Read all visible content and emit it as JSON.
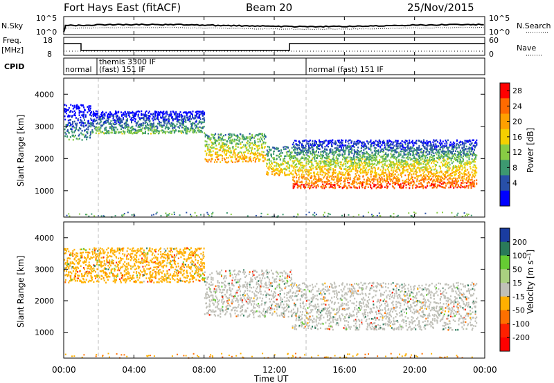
{
  "header": {
    "station": "Fort Hays East (fitACF)",
    "beam": "Beam 20",
    "date": "25/Nov/2015"
  },
  "panels": {
    "nsky": {
      "label": "N.Sky",
      "ticks": [
        "10^5",
        "10^0"
      ],
      "right_label": "N.Search",
      "right_ticks": [
        "10^5",
        "10^0"
      ]
    },
    "freq": {
      "label_line1": "Freq.",
      "label_line2": "[MHz]",
      "ticks": [
        "18",
        "8"
      ],
      "right_label": "Nave",
      "right_ticks": [
        "60",
        "0"
      ]
    },
    "cpid": {
      "label": "CPID",
      "segments": [
        {
          "name": "normal"
        },
        {
          "name": "themis 3300 IF\n(fast) 151 IF"
        },
        {
          "name": "normal (fast) 151 IF"
        }
      ]
    }
  },
  "axes": {
    "ylabel": "Slant Range [km]",
    "xlabel": "Time UT",
    "x_ticks": [
      "00:00",
      "04:00",
      "08:00",
      "12:00",
      "16:00",
      "20:00",
      "00:00"
    ],
    "y_ticks": [
      "1000",
      "2000",
      "3000",
      "4000"
    ]
  },
  "colorbars": {
    "power": {
      "label": "Power [dB]",
      "ticks": [
        "28",
        "24",
        "20",
        "16",
        "12",
        "8",
        "4"
      ],
      "colors": [
        "#ff0000",
        "#ff6a00",
        "#ffa000",
        "#f5d000",
        "#88cc44",
        "#3d9970",
        "#2850a8",
        "#0000ff"
      ]
    },
    "velocity": {
      "label": "Velocity [m s⁻¹]",
      "ticks": [
        "200",
        "100",
        "50",
        "15",
        "-15",
        "-50",
        "-100",
        "-200"
      ],
      "colors": [
        "#1a3ca0",
        "#2a7a5a",
        "#66cc33",
        "#aad080",
        "#c0c0b8",
        "#ffb000",
        "#ff7000",
        "#ff2000",
        "#ff0000"
      ]
    }
  },
  "chart_data": [
    {
      "type": "heatmap",
      "title": "Power",
      "xlabel": "Time UT",
      "ylabel": "Slant Range [km]",
      "x_range_hours": [
        0,
        24
      ],
      "y_range_km": [
        180,
        4500
      ],
      "colorbar": "Power [dB]",
      "colorbar_range": [
        0,
        30
      ],
      "echo_regions": [
        {
          "t_start": 0.0,
          "t_end": 1.5,
          "range_low": 2600,
          "range_high": 3700,
          "power_db": 10
        },
        {
          "t_start": 1.5,
          "t_end": 8.0,
          "range_low": 2800,
          "range_high": 3500,
          "power_db": 12
        },
        {
          "t_start": 8.0,
          "t_end": 11.5,
          "range_low": 1900,
          "range_high": 2800,
          "power_db": 22
        },
        {
          "t_start": 11.5,
          "t_end": 13.0,
          "range_low": 1500,
          "range_high": 2400,
          "power_db": 20
        },
        {
          "t_start": 13.0,
          "t_end": 23.5,
          "range_low": 1100,
          "range_high": 1900,
          "power_db": 28
        },
        {
          "t_start": 13.0,
          "t_end": 23.5,
          "range_low": 1900,
          "range_high": 2600,
          "power_db": 14
        }
      ]
    },
    {
      "type": "heatmap",
      "title": "Velocity",
      "xlabel": "Time UT",
      "ylabel": "Slant Range [km]",
      "x_range_hours": [
        0,
        24
      ],
      "y_range_km": [
        180,
        4500
      ],
      "colorbar": "Velocity [m s⁻¹]",
      "colorbar_range": [
        -200,
        200
      ],
      "echo_regions": [
        {
          "t_start": 0.0,
          "t_end": 8.0,
          "range_low": 2600,
          "range_high": 3700,
          "velocity": -40
        },
        {
          "t_start": 8.0,
          "t_end": 13.0,
          "range_low": 1500,
          "range_high": 3000,
          "velocity": 0
        },
        {
          "t_start": 13.0,
          "t_end": 23.5,
          "range_low": 1100,
          "range_high": 2600,
          "velocity": 0
        }
      ]
    }
  ]
}
